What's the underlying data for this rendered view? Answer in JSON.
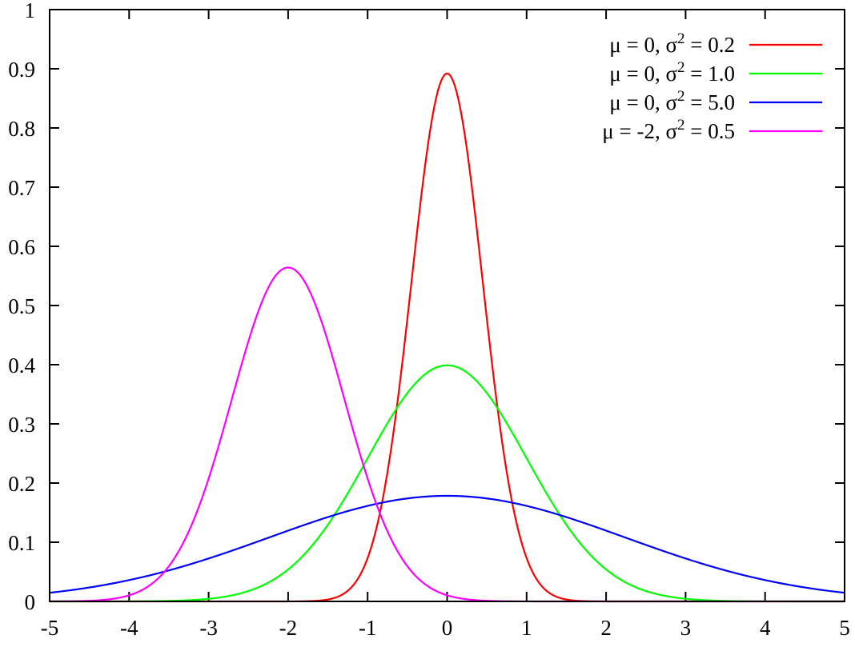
{
  "chart_data": {
    "type": "line",
    "title": "",
    "xlabel": "",
    "ylabel": "",
    "xlim": [
      -5,
      5
    ],
    "ylim": [
      0,
      1
    ],
    "grid": false,
    "legend_position": "top-right",
    "x_ticks": [
      -5,
      -4,
      -3,
      -2,
      -1,
      0,
      1,
      2,
      3,
      4,
      5
    ],
    "x_tick_labels": [
      "-5",
      "-4",
      "-3",
      "-2",
      "-1",
      "0",
      "1",
      "2",
      "3",
      "4",
      "5"
    ],
    "y_ticks": [
      0,
      0.1,
      0.2,
      0.3,
      0.4,
      0.5,
      0.6,
      0.7,
      0.8,
      0.9,
      1
    ],
    "y_tick_labels": [
      "0",
      "0.1",
      "0.2",
      "0.3",
      "0.4",
      "0.5",
      "0.6",
      "0.7",
      "0.8",
      "0.9",
      "1"
    ],
    "series": [
      {
        "name": "μ = 0, σ² = 0.2",
        "mu_label": "μ =  0, σ",
        "sup": "2",
        "var_label": " = 0.2",
        "mu": 0,
        "variance": 0.2,
        "color": "#ff0000",
        "x": [
          -5,
          -4.5,
          -4,
          -3.5,
          -3,
          -2.5,
          -2,
          -1.5,
          -1,
          -0.5,
          0,
          0.5,
          1,
          1.5,
          2,
          2.5,
          3,
          3.5,
          4,
          4.5,
          5
        ],
        "y": [
          0,
          0,
          0,
          0,
          0,
          0,
          0,
          0.0033,
          0.0734,
          0.4797,
          0.8921,
          0.4797,
          0.0734,
          0.0033,
          0,
          0,
          0,
          0,
          0,
          0,
          0
        ]
      },
      {
        "name": "μ = 0, σ² = 1.0",
        "mu_label": "μ =  0, σ",
        "sup": "2",
        "var_label": " = 1.0",
        "mu": 0,
        "variance": 1.0,
        "color": "#00ff00",
        "x": [
          -5,
          -4.5,
          -4,
          -3.5,
          -3,
          -2.5,
          -2,
          -1.5,
          -1,
          -0.5,
          0,
          0.5,
          1,
          1.5,
          2,
          2.5,
          3,
          3.5,
          4,
          4.5,
          5
        ],
        "y": [
          0,
          0,
          0.0001,
          0.0009,
          0.0044,
          0.0175,
          0.054,
          0.1295,
          0.242,
          0.3521,
          0.3989,
          0.3521,
          0.242,
          0.1295,
          0.054,
          0.0175,
          0.0044,
          0.0009,
          0.0001,
          0,
          0
        ]
      },
      {
        "name": "μ = 0, σ² = 5.0",
        "mu_label": "μ =  0, σ",
        "sup": "2",
        "var_label": " = 5.0",
        "mu": 0,
        "variance": 5.0,
        "color": "#0000ff",
        "x": [
          -5,
          -4.5,
          -4,
          -3.5,
          -3,
          -2.5,
          -2,
          -1.5,
          -1,
          -0.5,
          0,
          0.5,
          1,
          1.5,
          2,
          2.5,
          3,
          3.5,
          4,
          4.5,
          5
        ],
        "y": [
          0.0146,
          0.0234,
          0.0356,
          0.0525,
          0.0737,
          0.0958,
          0.1196,
          0.1421,
          0.1614,
          0.1747,
          0.1784,
          0.1747,
          0.1614,
          0.1421,
          0.1196,
          0.0958,
          0.0737,
          0.0525,
          0.0356,
          0.0234,
          0.0146
        ]
      },
      {
        "name": "μ = -2, σ² = 0.5",
        "mu_label": "μ = -2, σ",
        "sup": "2",
        "var_label": " = 0.5",
        "mu": -2,
        "variance": 0.5,
        "color": "#ff00ff",
        "x": [
          -5,
          -4.5,
          -4,
          -3.5,
          -3,
          -2.5,
          -2,
          -1.5,
          -1,
          -0.5,
          0,
          0.5,
          1,
          1.5,
          2,
          2.5,
          3,
          3.5,
          4,
          4.5,
          5
        ],
        "y": [
          0,
          0.0011,
          0.0103,
          0.0595,
          0.2076,
          0.4393,
          0.5642,
          0.4393,
          0.2076,
          0.0595,
          0.0103,
          0.0011,
          0,
          0,
          0,
          0,
          0,
          0,
          0,
          0,
          0
        ]
      }
    ]
  }
}
